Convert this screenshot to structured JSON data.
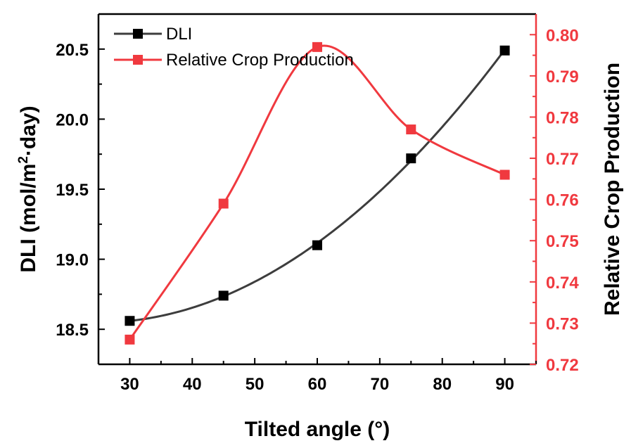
{
  "chart_data": {
    "type": "line",
    "title": "",
    "xlabel": "Tilted angle (°)",
    "ylabel_left": {
      "prefix": "DLI (mol/m",
      "sup": "2",
      "suffix": "·day)"
    },
    "ylabel_right": "Relative Crop Production",
    "x": [
      30,
      45,
      60,
      75,
      90
    ],
    "xlim": [
      25,
      95
    ],
    "xticks": [
      "30",
      "40",
      "50",
      "60",
      "70",
      "80",
      "90"
    ],
    "ylim_left": [
      18.25,
      20.75
    ],
    "yticks_left": [
      "18.5",
      "19.0",
      "19.5",
      "20.0",
      "20.5"
    ],
    "ylim_right": [
      0.72,
      0.805
    ],
    "yticks_right": [
      "0.72",
      "0.73",
      "0.74",
      "0.75",
      "0.76",
      "0.77",
      "0.78",
      "0.79",
      "0.80"
    ],
    "series": [
      {
        "name": "DLI",
        "axis": "left",
        "color": "#3d3d3d",
        "marker_color": "#000000",
        "values": [
          18.56,
          18.74,
          19.1,
          19.72,
          20.49
        ]
      },
      {
        "name": "Relative Crop Production",
        "axis": "right",
        "color": "#f0393f",
        "marker_color": "#f0393f",
        "values": [
          0.726,
          0.759,
          0.797,
          0.777,
          0.766
        ]
      }
    ],
    "legend_position": "top-left",
    "grid": false,
    "colors": {
      "axis": "#000000",
      "right_axis": "#f0393f"
    }
  }
}
